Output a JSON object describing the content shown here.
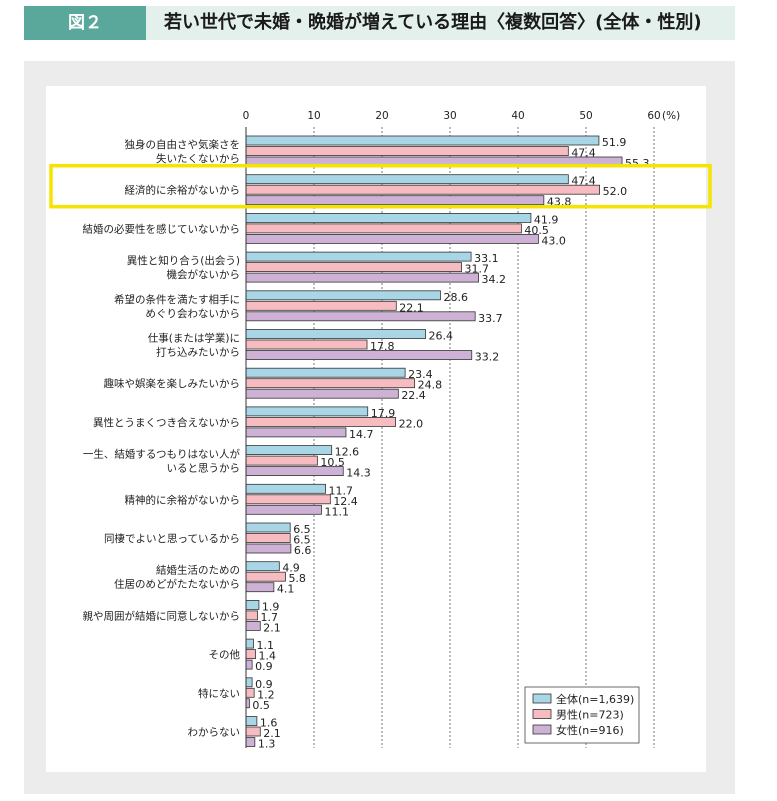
{
  "header": {
    "figure_label": "図２",
    "title": "若い世代で未婚・晩婚が増えている理由〈複数回答〉(全体・性別)"
  },
  "colors": {
    "overall": "#a9d6e6",
    "male": "#f7bcc2",
    "female": "#cdb2d5",
    "highlight": "#f4e400",
    "header_accent": "#5aa79b",
    "header_bg": "#e3f0ec"
  },
  "chart_data": {
    "type": "bar",
    "orientation": "horizontal",
    "x_range": [
      0,
      60
    ],
    "x_ticks": [
      0,
      10,
      20,
      30,
      40,
      50,
      60
    ],
    "x_unit": "(%)",
    "grid": "vertical-dashed",
    "legend_position": "bottom-right",
    "highlighted_category": 1,
    "categories": [
      [
        "独身の自由さや気楽さを",
        "失いたくないから"
      ],
      [
        "経済的に余裕がないから"
      ],
      [
        "結婚の必要性を感じていないから"
      ],
      [
        "異性と知り合う(出会う)",
        "機会がないから"
      ],
      [
        "希望の条件を満たす相手に",
        "めぐり会わないから"
      ],
      [
        "仕事(または学業)に",
        "打ち込みたいから"
      ],
      [
        "趣味や娯楽を楽しみたいから"
      ],
      [
        "異性とうまくつき合えないから"
      ],
      [
        "一生、結婚するつもりはない人が",
        "いると思うから"
      ],
      [
        "精神的に余裕がないから"
      ],
      [
        "同棲でよいと思っているから"
      ],
      [
        "結婚生活のための",
        "住居のめどがたたないから"
      ],
      [
        "親や周囲が結婚に同意しないから"
      ],
      [
        "その他"
      ],
      [
        "特にない"
      ],
      [
        "わからない"
      ]
    ],
    "series": [
      {
        "name": "全体(n=1,639)",
        "color": "#a9d6e6",
        "values": [
          51.9,
          47.4,
          41.9,
          33.1,
          28.6,
          26.4,
          23.4,
          17.9,
          12.6,
          11.7,
          6.5,
          4.9,
          1.9,
          1.1,
          0.9,
          1.6
        ]
      },
      {
        "name": "男性(n=723)",
        "color": "#f7bcc2",
        "values": [
          47.4,
          52.0,
          40.5,
          31.7,
          22.1,
          17.8,
          24.8,
          22.0,
          10.5,
          12.4,
          6.5,
          5.8,
          1.7,
          1.4,
          1.2,
          2.1
        ]
      },
      {
        "name": "女性(n=916)",
        "color": "#cdb2d5",
        "values": [
          55.3,
          43.8,
          43.0,
          34.2,
          33.7,
          33.2,
          22.4,
          14.7,
          14.3,
          11.1,
          6.6,
          4.1,
          2.1,
          0.9,
          0.5,
          1.3
        ]
      }
    ]
  }
}
